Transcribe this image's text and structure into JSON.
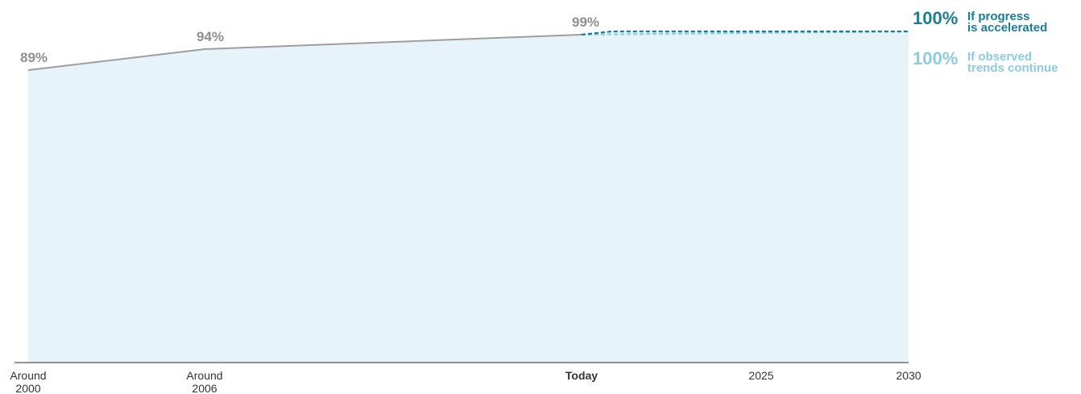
{
  "chart_data": {
    "type": "area",
    "x_labels": [
      "Around 2000",
      "Around 2006",
      "Today",
      "2025",
      "2030"
    ],
    "x_positions_years": [
      2000,
      2006,
      2019,
      2025,
      2030
    ],
    "ylim": [
      0,
      100
    ],
    "observed": {
      "x": [
        2000,
        2006,
        2019
      ],
      "values": [
        89,
        94,
        99
      ],
      "labels": [
        "89%",
        "94%",
        "99%"
      ],
      "color": "#9e9e9e",
      "fill_color": "#e6f3f8"
    },
    "series": [
      {
        "name": "If progress is accelerated",
        "name_lines": [
          "If progress",
          "is accelerated"
        ],
        "end_label": "100%",
        "x": [
          2019,
          2020,
          2030
        ],
        "values": [
          99,
          100,
          100
        ],
        "color": "#1a7d96",
        "style": "dashed"
      },
      {
        "name": "If observed trends continue",
        "name_lines": [
          "If observed",
          "trends continue"
        ],
        "end_label": "100%",
        "x": [
          2019,
          2030
        ],
        "values": [
          99,
          100
        ],
        "color": "#8ccbe0",
        "style": "dashed"
      }
    ],
    "x_tick_emphasis": "Today"
  }
}
